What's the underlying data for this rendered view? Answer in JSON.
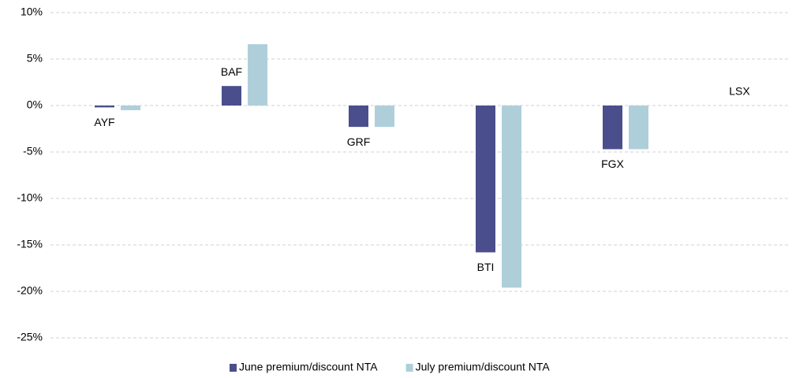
{
  "chart_data": {
    "type": "bar",
    "categories": [
      "AYF",
      "BAF",
      "GRF",
      "BTI",
      "FGX",
      "LSX"
    ],
    "series": [
      {
        "name": "June premium/discount NTA",
        "color": "#4a4e8c",
        "values": [
          -0.2,
          2.1,
          -2.3,
          -15.8,
          -4.7,
          null
        ]
      },
      {
        "name": "July premium/discount NTA",
        "color": "#aecfda",
        "values": [
          -0.5,
          6.6,
          -2.3,
          -19.6,
          -4.7,
          null
        ]
      }
    ],
    "ylim": [
      -25,
      10
    ],
    "yticks": [
      {
        "value": -25,
        "label": "-25%"
      },
      {
        "value": -20,
        "label": "-20%"
      },
      {
        "value": -15,
        "label": "-15%"
      },
      {
        "value": -10,
        "label": "-10%"
      },
      {
        "value": -5,
        "label": "-5%"
      },
      {
        "value": 0,
        "label": "0%"
      },
      {
        "value": 5,
        "label": "5%"
      },
      {
        "value": 10,
        "label": "10%"
      }
    ],
    "grid": true,
    "legend": "bottom"
  }
}
